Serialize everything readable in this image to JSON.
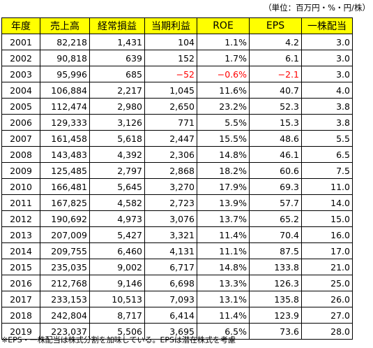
{
  "unit_note": "（単位：百万円・%・円/株）",
  "headers": [
    "年度",
    "売上高",
    "経常損益",
    "当期利益",
    "ROE",
    "EPS",
    "一株配当"
  ],
  "rows": [
    [
      "2001",
      "82,218",
      "1,431",
      "104",
      "1.1%",
      "4.2",
      "3.0"
    ],
    [
      "2002",
      "90,818",
      "639",
      "152",
      "1.7%",
      "6.1",
      "3.0"
    ],
    [
      "2003",
      "95,996",
      "685",
      "−52",
      "−0.6%",
      "−2.1",
      "3.0"
    ],
    [
      "2004",
      "106,884",
      "2,217",
      "1,045",
      "11.6%",
      "40.7",
      "4.0"
    ],
    [
      "2005",
      "112,474",
      "2,980",
      "2,650",
      "23.2%",
      "52.3",
      "3.8"
    ],
    [
      "2006",
      "129,333",
      "3,126",
      "771",
      "5.5%",
      "15.3",
      "3.8"
    ],
    [
      "2007",
      "161,458",
      "5,618",
      "2,447",
      "15.5%",
      "48.6",
      "5.5"
    ],
    [
      "2008",
      "143,483",
      "4,392",
      "2,306",
      "14.8%",
      "46.1",
      "6.5"
    ],
    [
      "2009",
      "125,485",
      "2,797",
      "2,868",
      "18.2%",
      "60.6",
      "7.5"
    ],
    [
      "2010",
      "166,481",
      "5,645",
      "3,270",
      "17.9%",
      "69.3",
      "11.0"
    ],
    [
      "2011",
      "167,825",
      "4,582",
      "2,723",
      "13.9%",
      "57.7",
      "14.0"
    ],
    [
      "2012",
      "190,692",
      "4,973",
      "3,076",
      "13.7%",
      "65.2",
      "15.0"
    ],
    [
      "2013",
      "207,009",
      "5,427",
      "3,321",
      "11.4%",
      "70.4",
      "16.0"
    ],
    [
      "2014",
      "209,755",
      "6,460",
      "4,131",
      "11.1%",
      "87.5",
      "17.0"
    ],
    [
      "2015",
      "235,035",
      "9,002",
      "6,717",
      "14.8%",
      "133.8",
      "21.0"
    ],
    [
      "2016",
      "212,768",
      "9,146",
      "6,698",
      "13.3%",
      "126.3",
      "25.0"
    ],
    [
      "2017",
      "233,153",
      "10,513",
      "7,093",
      "13.1%",
      "135.8",
      "26.0"
    ],
    [
      "2018",
      "242,804",
      "8,717",
      "6,414",
      "11.4%",
      "123.9",
      "27.0"
    ],
    [
      "2019",
      "223,037",
      "5,506",
      "3,695",
      "6.5%",
      "73.6",
      "28.0"
    ]
  ],
  "negative_cells": [
    [
      2,
      3
    ],
    [
      2,
      4
    ],
    [
      2,
      5
    ]
  ],
  "footnote": "※EPS・一株配当は株式分割を加味している。EPSは潜在株式を考慮",
  "colors": {
    "header_bg": "#ffff00",
    "negative": "#ff0000",
    "border": "#000000"
  }
}
